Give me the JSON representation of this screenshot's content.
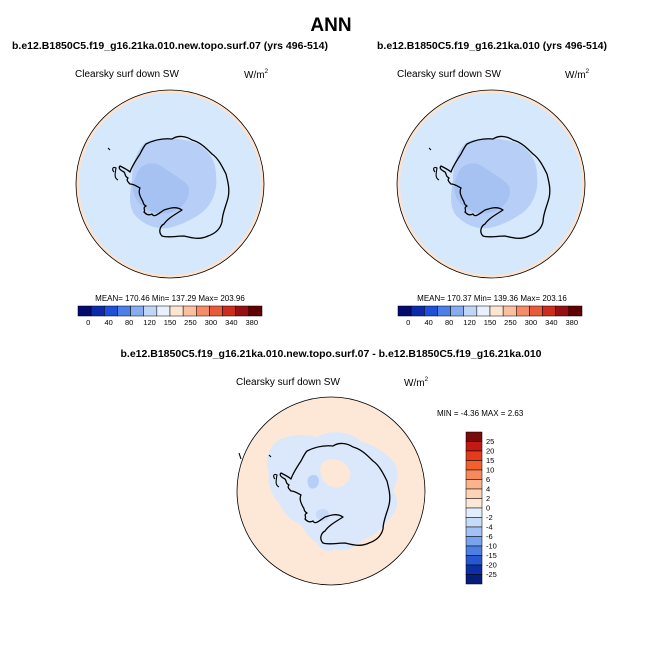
{
  "figure": {
    "title": "ANN",
    "colors": {
      "ocean_light": "#d6e8fb",
      "land_mid": "#b7cff6",
      "land_dark": "#a6c2f3",
      "warm": "#fde3ce",
      "coast": "#000000"
    }
  },
  "chart_data": [
    {
      "type": "heatmap",
      "id": "panel-1",
      "title": "b.e12.B1850C5.f19_g16.21ka.010.new.topo.surf.07 (yrs 496-514)",
      "variable": "Clearsky surf down SW",
      "units_base": "W/m",
      "units_exp": "2",
      "stats_text": "MEAN= 170.46  Min= 137.29  Max= 203.96",
      "stats": {
        "mean": 170.46,
        "min": 137.29,
        "max": 203.96
      },
      "projection": "south-polar stereographic",
      "colorbar": {
        "orientation": "horizontal",
        "levels": [
          "0",
          "40",
          "80",
          "120",
          "150",
          "250",
          "300",
          "340",
          "380"
        ],
        "colors": [
          "#050a6e",
          "#0c2aa8",
          "#1f4fd6",
          "#4e7fe8",
          "#87acf0",
          "#c0d6f7",
          "#e8f1fd",
          "#fde5d3",
          "#f9bfa0",
          "#f48c68",
          "#e85a3c",
          "#cc2b1d",
          "#971011",
          "#600000"
        ]
      }
    },
    {
      "type": "heatmap",
      "id": "panel-2",
      "title": "b.e12.B1850C5.f19_g16.21ka.010 (yrs 496-514)",
      "variable": "Clearsky surf down SW",
      "units_base": "W/m",
      "units_exp": "2",
      "stats_text": "MEAN= 170.37  Min= 139.36  Max= 203.16",
      "stats": {
        "mean": 170.37,
        "min": 139.36,
        "max": 203.16
      },
      "projection": "south-polar stereographic",
      "colorbar": {
        "orientation": "horizontal",
        "levels": [
          "0",
          "40",
          "80",
          "120",
          "150",
          "250",
          "300",
          "340",
          "380"
        ],
        "colors": [
          "#050a6e",
          "#0c2aa8",
          "#1f4fd6",
          "#4e7fe8",
          "#87acf0",
          "#c0d6f7",
          "#e8f1fd",
          "#fde5d3",
          "#f9bfa0",
          "#f48c68",
          "#e85a3c",
          "#cc2b1d",
          "#971011",
          "#600000"
        ]
      }
    },
    {
      "type": "heatmap",
      "id": "panel-diff",
      "title": "b.e12.B1850C5.f19_g16.21ka.010.new.topo.surf.07 - b.e12.B1850C5.f19_g16.21ka.010",
      "variable": "Clearsky surf down SW",
      "units_base": "W/m",
      "units_exp": "2",
      "stats_text": "MIN =  -4.36  MAX =   2.63",
      "stats": {
        "min": -4.36,
        "max": 2.63
      },
      "projection": "south-polar stereographic",
      "colorbar": {
        "orientation": "vertical",
        "levels": [
          "25",
          "20",
          "15",
          "10",
          "6",
          "4",
          "2",
          "0",
          "-2",
          "-4",
          "-6",
          "-10",
          "-15",
          "-20",
          "-25"
        ],
        "colors": [
          "#7a0b0b",
          "#c21a12",
          "#e63a1c",
          "#f2602e",
          "#f58a5c",
          "#f9b48e",
          "#fcd3b7",
          "#fde8d8",
          "#e3eefc",
          "#c6dbf8",
          "#a3c1f4",
          "#7aa3ee",
          "#4d7fe3",
          "#2656d0",
          "#0d2fa6",
          "#071d7a"
        ]
      }
    }
  ]
}
